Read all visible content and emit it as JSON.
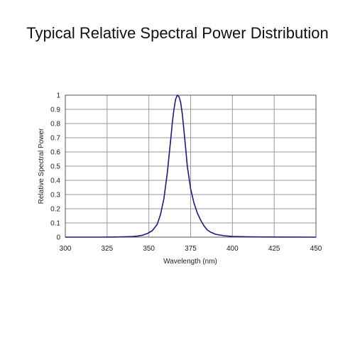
{
  "title": "Typical Relative Spectral Power Distribution",
  "chart_data": {
    "type": "line",
    "xlabel": "Wavelength (nm)",
    "ylabel": "Relative Spectral Power",
    "xlim": [
      300,
      450
    ],
    "ylim": [
      0,
      1
    ],
    "x_ticks": [
      300,
      325,
      350,
      375,
      400,
      425,
      450
    ],
    "y_ticks": [
      0,
      0.1,
      0.2,
      0.3,
      0.4,
      0.5,
      0.6,
      0.7,
      0.8,
      0.9,
      1
    ],
    "grid": true,
    "colors": {
      "line": "#1b1b80",
      "grid": "#9a9a9a"
    },
    "series": [
      {
        "x": [
          300,
          320,
          330,
          335,
          340,
          343,
          346,
          349,
          352,
          355,
          357,
          359,
          361,
          363,
          364,
          365,
          366,
          367,
          368,
          369,
          370,
          371,
          372,
          373,
          375,
          377,
          379,
          381,
          383,
          385,
          387,
          390,
          395,
          400,
          410,
          420,
          450
        ],
        "y": [
          0,
          0,
          0.001,
          0.002,
          0.004,
          0.007,
          0.013,
          0.025,
          0.045,
          0.09,
          0.16,
          0.27,
          0.45,
          0.68,
          0.8,
          0.9,
          0.97,
          1.0,
          0.99,
          0.95,
          0.87,
          0.75,
          0.63,
          0.5,
          0.34,
          0.24,
          0.17,
          0.12,
          0.08,
          0.05,
          0.035,
          0.02,
          0.01,
          0.005,
          0.002,
          0.001,
          0
        ]
      }
    ]
  }
}
